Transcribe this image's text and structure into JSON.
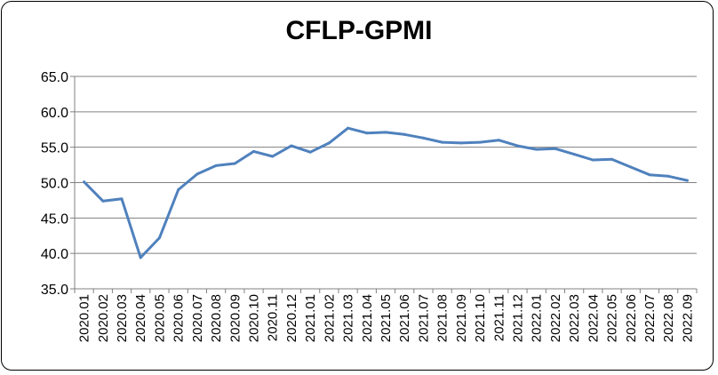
{
  "chart_data": {
    "type": "line",
    "title": "CFLP-GPMI",
    "xlabel": "",
    "ylabel": "",
    "ylim": [
      35.0,
      65.0
    ],
    "yticks": [
      "35.0",
      "40.0",
      "45.0",
      "50.0",
      "55.0",
      "60.0",
      "65.0"
    ],
    "grid": "horizontal",
    "legend": "none",
    "line_color": "#4f81bd",
    "categories": [
      "2020.01",
      "2020.02",
      "2020.03",
      "2020.04",
      "2020.05",
      "2020.06",
      "2020.07",
      "2020.08",
      "2020.09",
      "2020.10",
      "2020.11",
      "2020.12",
      "2021.01",
      "2021.02",
      "2021.03",
      "2021.04",
      "2021.05",
      "2021.06",
      "2021.07",
      "2021.08",
      "2021.09",
      "2021.10",
      "2021.11",
      "2021.12",
      "2022.01",
      "2022.02",
      "2022.03",
      "2022.04",
      "2022.05",
      "2022.06",
      "2022.07",
      "2022.08",
      "2022.09"
    ],
    "series": [
      {
        "values": [
          50.1,
          47.4,
          47.7,
          39.4,
          42.2,
          49.0,
          51.2,
          52.4,
          52.7,
          54.4,
          53.7,
          55.2,
          54.3,
          55.6,
          57.7,
          57.0,
          57.1,
          56.8,
          56.3,
          55.7,
          55.6,
          55.7,
          56.0,
          55.2,
          54.7,
          54.8,
          54.0,
          53.2,
          53.3,
          52.2,
          51.1,
          50.9,
          50.3
        ]
      }
    ]
  }
}
